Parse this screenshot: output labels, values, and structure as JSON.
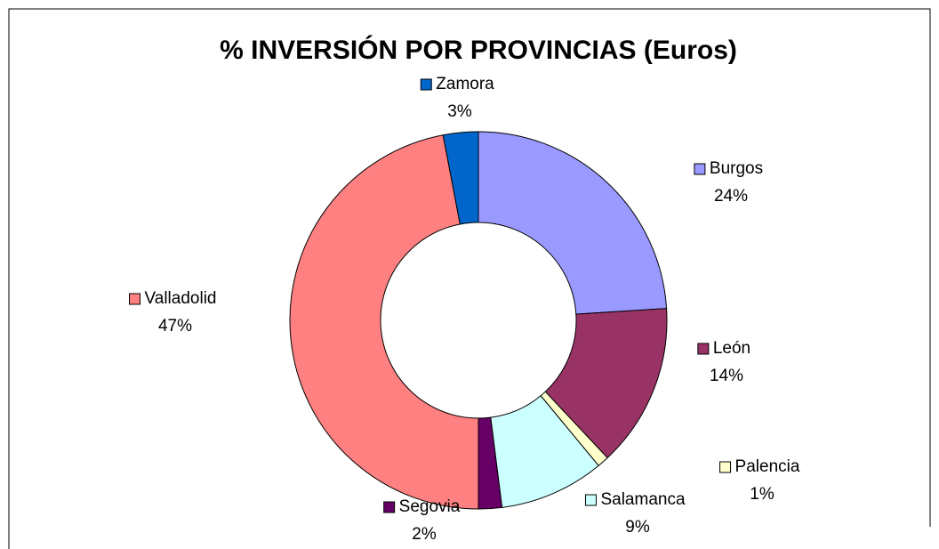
{
  "chart_data": {
    "type": "donut",
    "title": "% INVERSIÓN POR PROVINCIAS (Euros)",
    "categories": [
      "Burgos",
      "León",
      "Palencia",
      "Salamanca",
      "Segovia",
      "Valladolid",
      "Zamora"
    ],
    "values": [
      24,
      14,
      1,
      9,
      2,
      47,
      3
    ],
    "value_labels": [
      "24%",
      "14%",
      "1%",
      "9%",
      "2%",
      "47%",
      "3%"
    ],
    "colors": [
      "#9999ff",
      "#993366",
      "#ffffcc",
      "#ccffff",
      "#660066",
      "#ff8080",
      "#0066cc"
    ]
  }
}
